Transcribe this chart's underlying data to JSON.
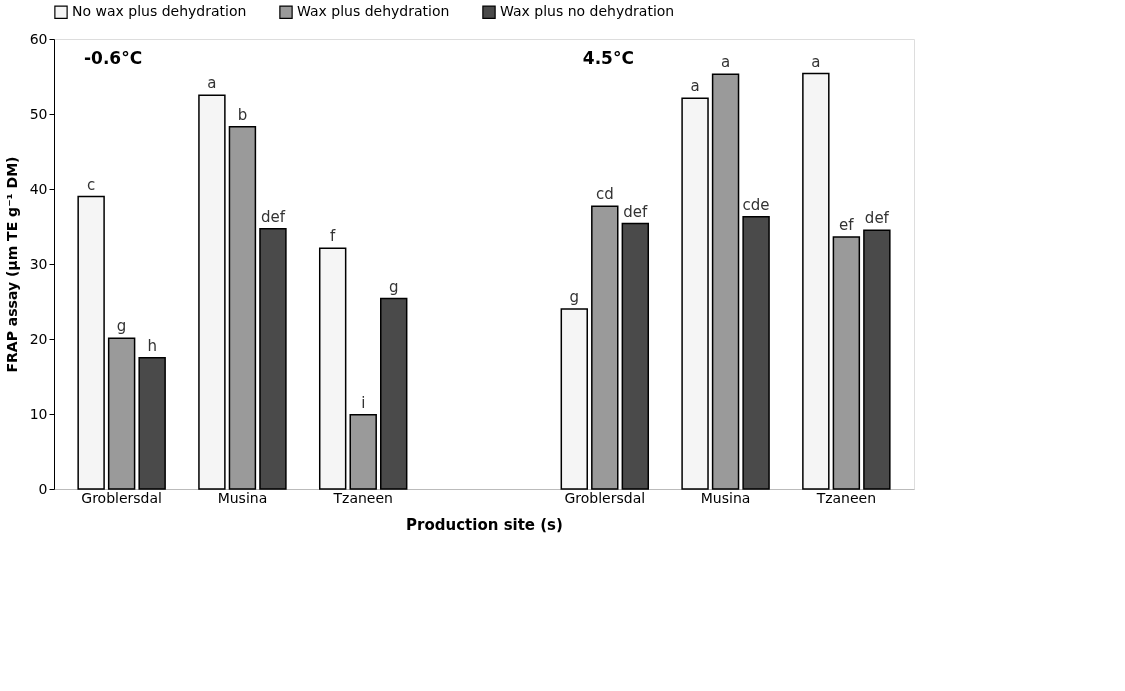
{
  "chart_data": {
    "type": "bar",
    "xlabel": "Production site (s)",
    "ylabel": "FRAP assay (µm TE g⁻¹ DM)",
    "categories": [
      "Groblersdal",
      "Musina",
      "Tzaneen",
      null,
      "Groblersdal",
      "Musina",
      "Tzaneen"
    ],
    "series": [
      {
        "name": "No wax plus dehydration",
        "color": "#f5f5f5",
        "values": [
          39.0,
          52.5,
          32.1,
          null,
          24.0,
          52.1,
          55.4
        ],
        "value_labels": [
          "c",
          "a",
          "f",
          null,
          "g",
          "a",
          "a"
        ]
      },
      {
        "name": "Wax plus dehydration",
        "color": "#9a9a9a",
        "values": [
          20.1,
          48.3,
          9.9,
          null,
          37.7,
          55.3,
          33.6
        ],
        "value_labels": [
          "g",
          "b",
          "i",
          null,
          "cd",
          "a",
          "ef"
        ]
      },
      {
        "name": "Wax plus no dehydration",
        "color": "#4a4a4a",
        "values": [
          17.5,
          34.7,
          25.4,
          null,
          35.4,
          36.3,
          34.5
        ],
        "value_labels": [
          "h",
          "def",
          "g",
          null,
          "def",
          "cde",
          "def"
        ]
      }
    ],
    "ylim": [
      0,
      60
    ],
    "yticks": [
      0,
      10,
      20,
      30,
      40,
      50,
      60
    ],
    "grid": false,
    "legend": "top",
    "annotations": [
      "-0.6°C",
      "4.5°C"
    ]
  }
}
